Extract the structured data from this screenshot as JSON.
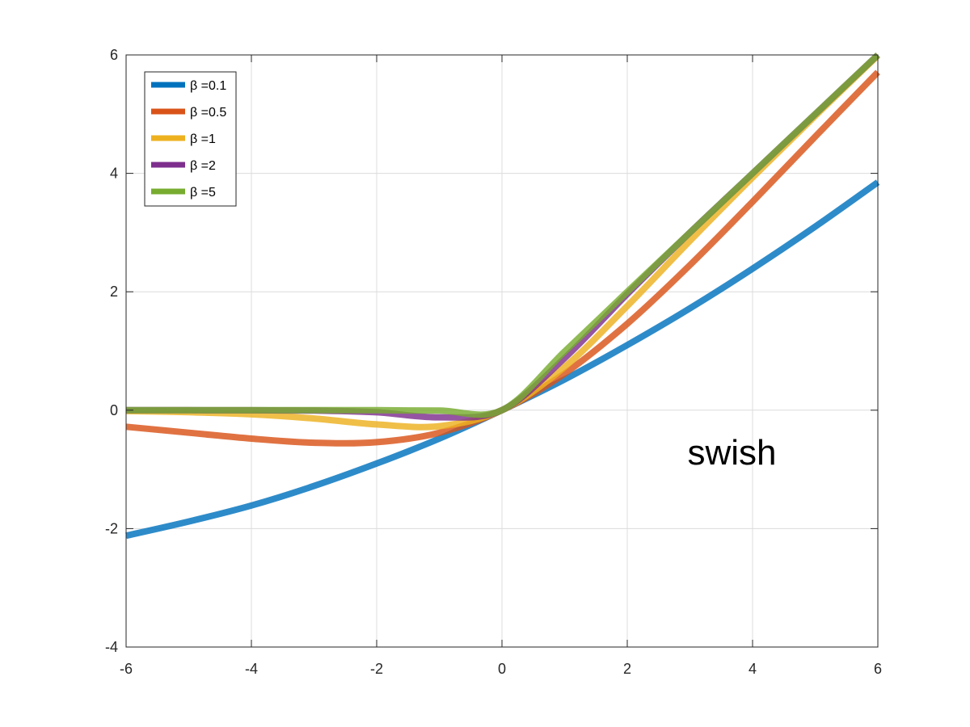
{
  "chart_data": {
    "type": "line",
    "title": "",
    "xlabel": "",
    "ylabel": "",
    "xlim": [
      -6,
      6
    ],
    "ylim": [
      -4,
      6
    ],
    "grid": true,
    "legend_position": "top-left",
    "x_ticks": [
      "-6",
      "-4",
      "-2",
      "0",
      "2",
      "4",
      "6"
    ],
    "y_ticks": [
      "-4",
      "-2",
      "0",
      "2",
      "4",
      "6"
    ],
    "annotation": {
      "text": "swish",
      "x": 3,
      "y": -0.7
    },
    "x": [
      -6,
      -5,
      -4,
      -3,
      -2,
      -1,
      0,
      1,
      2,
      3,
      4,
      5,
      6
    ],
    "series": [
      {
        "name": "β =0.1",
        "color": "#0072BD",
        "values": [
          -2.12,
          -1.88,
          -1.61,
          -1.28,
          -0.9,
          -0.48,
          0,
          0.52,
          1.1,
          1.72,
          2.39,
          3.1,
          3.85
        ]
      },
      {
        "name": "β =0.5",
        "color": "#D95319",
        "values": [
          -0.28,
          -0.38,
          -0.48,
          -0.55,
          -0.54,
          -0.38,
          0,
          0.62,
          1.46,
          2.45,
          3.52,
          4.62,
          5.71
        ]
      },
      {
        "name": "β =1",
        "color": "#EDB120",
        "values": [
          -0.015,
          -0.034,
          -0.07,
          -0.14,
          -0.24,
          -0.27,
          0,
          0.73,
          1.76,
          2.86,
          3.93,
          4.97,
          5.99
        ]
      },
      {
        "name": "β =2",
        "color": "#7E2F8E",
        "values": [
          0.0,
          -0.0005,
          -0.0013,
          -0.0074,
          -0.036,
          -0.12,
          0,
          0.88,
          1.96,
          3.0,
          4.0,
          5.0,
          6.0
        ]
      },
      {
        "name": "β =5",
        "color": "#77AC30",
        "values": [
          0.0,
          0.0,
          0.0,
          0.0,
          0.0,
          -0.0067,
          0,
          0.99,
          2.0,
          3.0,
          4.0,
          5.0,
          6.0
        ]
      }
    ]
  }
}
